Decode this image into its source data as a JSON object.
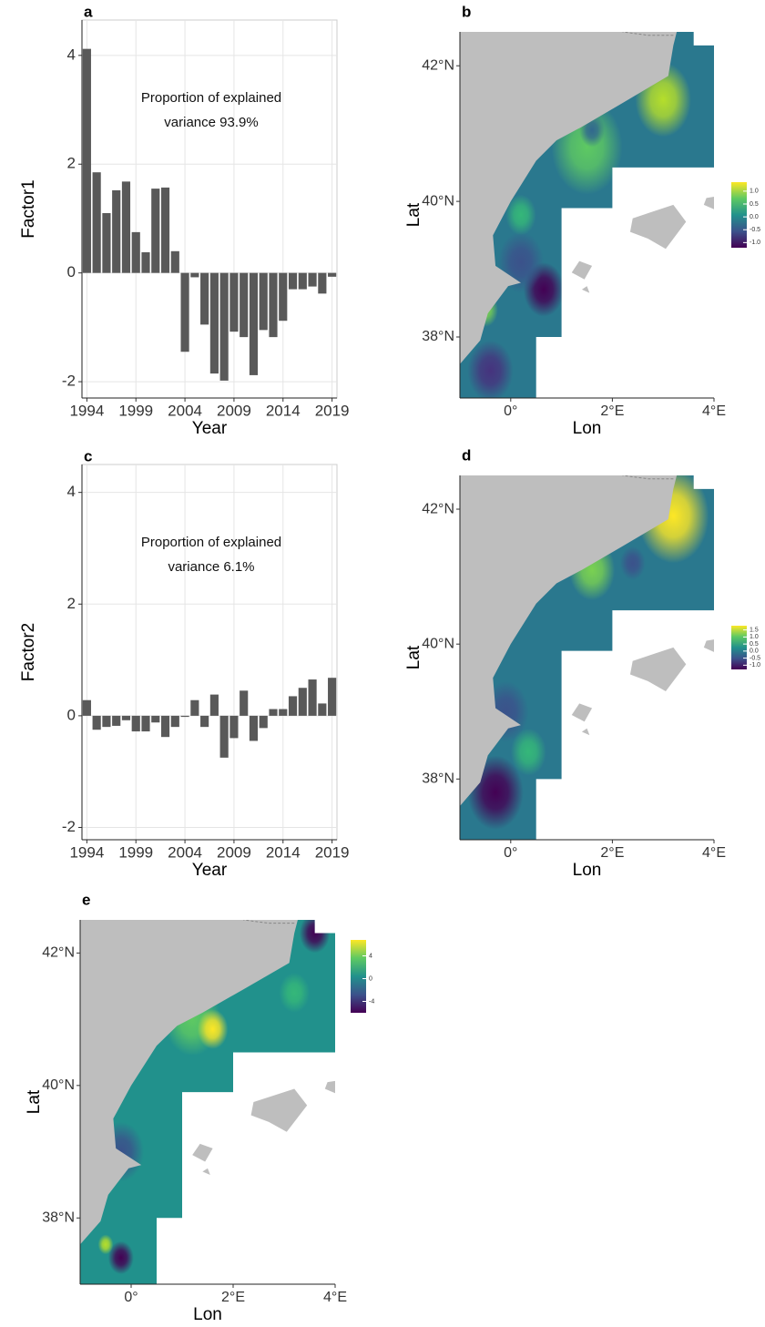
{
  "chart_data": [
    {
      "type": "bar",
      "label": "a",
      "ylabel": "Factor1",
      "xlabel": "Year",
      "annotation": [
        "Proportion of explained",
        "variance 93.9%"
      ],
      "x": [
        1994,
        1995,
        1996,
        1997,
        1998,
        1999,
        2000,
        2001,
        2002,
        2003,
        2004,
        2005,
        2006,
        2007,
        2008,
        2009,
        2010,
        2011,
        2012,
        2013,
        2014,
        2015,
        2016,
        2017,
        2018,
        2019
      ],
      "values": [
        4.12,
        1.85,
        1.1,
        1.52,
        1.68,
        0.75,
        0.38,
        1.55,
        1.57,
        0.4,
        -1.45,
        -0.08,
        -0.95,
        -1.85,
        -1.98,
        -1.08,
        -1.18,
        -1.88,
        -1.05,
        -1.18,
        -0.88,
        -0.3,
        -0.3,
        -0.25,
        -0.38,
        -0.07
      ],
      "color": "#595959",
      "grid": true,
      "xlim": [
        1993.5,
        2019.5
      ],
      "xticks": [
        1994,
        1999,
        2004,
        2009,
        2014,
        2019
      ],
      "ylim": [
        -2.3,
        4.65
      ],
      "yticks": [
        -2,
        0,
        2,
        4
      ]
    },
    {
      "type": "map",
      "label": "b",
      "xlabel": "Lon",
      "ylabel": "Lat",
      "xlim": [
        -1,
        4
      ],
      "ylim": [
        37.1,
        42.5
      ],
      "xticks": [
        {
          "value": 0,
          "label": "0°"
        },
        {
          "value": 2,
          "label": "2°E"
        },
        {
          "value": 4,
          "label": "4°E"
        }
      ],
      "yticks": [
        {
          "value": 38,
          "label": "38°N"
        },
        {
          "value": 40,
          "label": "40°N"
        },
        {
          "value": 42,
          "label": "42°N"
        }
      ],
      "colorbar_lim": [
        -1.2,
        1.35
      ],
      "colorbar_ticks": [
        {
          "value": 1,
          "label": "1.0"
        },
        0.5,
        {
          "value": 0,
          "label": "0.0"
        },
        -0.5,
        {
          "value": -1,
          "label": "-1.0"
        }
      ]
    },
    {
      "type": "bar",
      "label": "c",
      "ylabel": "Factor2",
      "xlabel": "Year",
      "annotation": [
        "Proportion of explained",
        "variance 6.1%"
      ],
      "x": [
        1994,
        1995,
        1996,
        1997,
        1998,
        1999,
        2000,
        2001,
        2002,
        2003,
        2004,
        2005,
        2006,
        2007,
        2008,
        2009,
        2010,
        2011,
        2012,
        2013,
        2014,
        2015,
        2016,
        2017,
        2018,
        2019
      ],
      "values": [
        0.28,
        -0.25,
        -0.2,
        -0.18,
        -0.08,
        -0.28,
        -0.28,
        -0.12,
        -0.38,
        -0.2,
        -0.02,
        0.28,
        -0.2,
        0.38,
        -0.75,
        -0.4,
        0.45,
        -0.45,
        -0.22,
        0.12,
        0.12,
        0.35,
        0.5,
        0.65,
        0.22,
        0.68
      ],
      "color": "#595959",
      "grid": true,
      "xlim": [
        1993.5,
        2019.5
      ],
      "xticks": [
        1994,
        1999,
        2004,
        2009,
        2014,
        2019
      ],
      "ylim": [
        -2.22,
        4.5
      ],
      "yticks": [
        -2,
        0,
        2,
        4
      ]
    },
    {
      "type": "map",
      "label": "d",
      "xlabel": "Lon",
      "ylabel": "Lat",
      "xlim": [
        -1,
        4
      ],
      "ylim": [
        37.1,
        42.5
      ],
      "xticks": [
        {
          "value": 0,
          "label": "0°"
        },
        {
          "value": 2,
          "label": "2°E"
        },
        {
          "value": 4,
          "label": "4°E"
        }
      ],
      "yticks": [
        {
          "value": 38,
          "label": "38°N"
        },
        {
          "value": 40,
          "label": "40°N"
        },
        {
          "value": 42,
          "label": "42°N"
        }
      ],
      "colorbar_lim": [
        -1.3,
        1.8
      ],
      "colorbar_ticks": [
        1.5,
        {
          "value": 1,
          "label": "1.0"
        },
        0.5,
        {
          "value": 0,
          "label": "0.0"
        },
        -0.5,
        {
          "value": -1,
          "label": "-1.0"
        }
      ]
    },
    {
      "type": "map",
      "label": "e",
      "xlabel": "Lon",
      "ylabel": "Lat",
      "xlim": [
        -1,
        4
      ],
      "ylim": [
        37.0,
        42.5
      ],
      "xticks": [
        {
          "value": 0,
          "label": "0°"
        },
        {
          "value": 2,
          "label": "2°E"
        },
        {
          "value": 4,
          "label": "4°E"
        }
      ],
      "yticks": [
        {
          "value": 38,
          "label": "38°N"
        },
        {
          "value": 40,
          "label": "40°N"
        },
        {
          "value": 42,
          "label": "42°N"
        }
      ],
      "colorbar_lim": [
        -6,
        6.8
      ],
      "colorbar_ticks": [
        4,
        0,
        -4
      ]
    }
  ]
}
